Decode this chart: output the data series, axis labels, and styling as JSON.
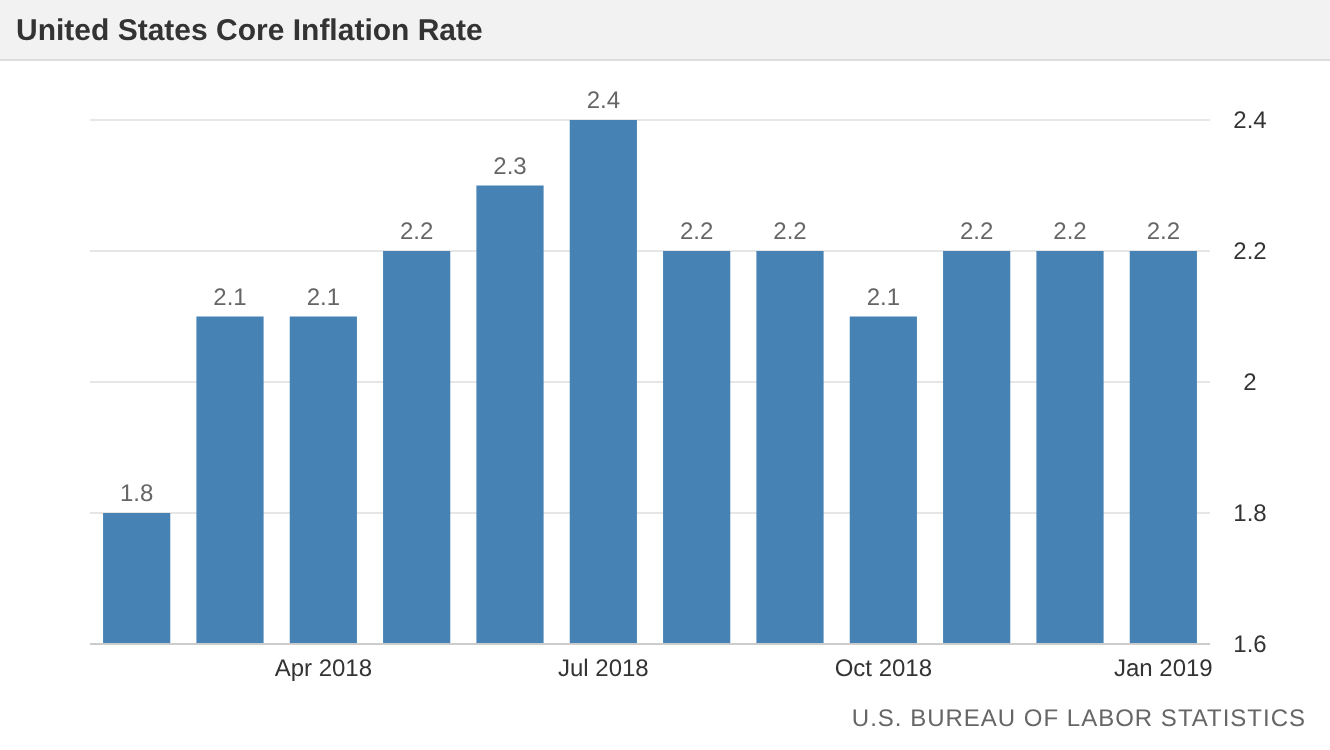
{
  "chart_data": {
    "type": "bar",
    "title": "United States Core Inflation Rate",
    "categories": [
      null,
      null,
      "Apr 2018",
      null,
      null,
      "Jul 2018",
      null,
      null,
      "Oct 2018",
      null,
      null,
      "Jan 2019"
    ],
    "values": [
      1.8,
      2.1,
      2.1,
      2.2,
      2.3,
      2.4,
      2.2,
      2.2,
      2.1,
      2.2,
      2.2,
      2.2
    ],
    "color": "#4682b4",
    "ylim": [
      1.6,
      2.4
    ],
    "yticks": [
      1.6,
      1.8,
      2,
      2.2,
      2.4
    ],
    "grid": "y",
    "data_labels": true,
    "annotations": [
      "U.S. BUREAU OF LABOR STATISTICS"
    ]
  }
}
